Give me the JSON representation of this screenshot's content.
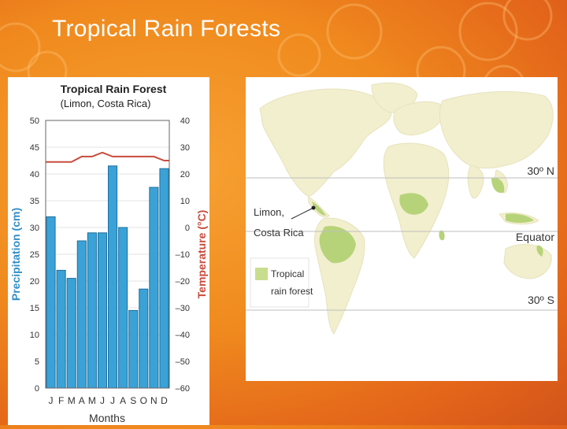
{
  "slide": {
    "title": "Tropical Rain Forests"
  },
  "chart_data": {
    "type": "bar+line",
    "title": "Tropical Rain Forest",
    "subtitle": "(Limon, Costa Rica)",
    "xlabel": "Months",
    "ylabel": "Precipitation (cm)",
    "y2label": "Temperature (°C)",
    "categories": [
      "J",
      "F",
      "M",
      "A",
      "M",
      "J",
      "J",
      "A",
      "S",
      "O",
      "N",
      "D"
    ],
    "ylim": [
      0,
      50
    ],
    "y2lim": [
      -60,
      40
    ],
    "yticks": [
      "50",
      "45",
      "40",
      "35",
      "30",
      "25",
      "20",
      "15",
      "10",
      "5",
      "0"
    ],
    "y2ticks": [
      "40",
      "30",
      "20",
      "10",
      "0",
      "–10",
      "–20",
      "–30",
      "–40",
      "–50",
      "–60"
    ],
    "series": [
      {
        "name": "Precipitation (cm)",
        "type": "bar",
        "color": "#3aa2d6",
        "values": [
          32,
          22,
          20.5,
          27.5,
          29,
          29,
          41.5,
          30,
          14.5,
          18.5,
          37.5,
          41
        ]
      },
      {
        "name": "Temperature (°C)",
        "type": "line",
        "color": "#c94b3c",
        "values": [
          24.5,
          24.5,
          24.5,
          26.5,
          26.5,
          28,
          26.5,
          26.5,
          26.5,
          26.5,
          26.5,
          25
        ]
      }
    ]
  },
  "map": {
    "location_label_line1": "Limon,",
    "location_label_line2": "Costa Rica",
    "legend_label_line1": "Tropical",
    "legend_label_line2": "rain forest",
    "lat_30n": "30º N",
    "equator": "Equator",
    "lat_30s": "30º S",
    "land_color": "#f2efce",
    "rainforest_color": "#b7d37a",
    "legend_color": "#c9dd8e"
  }
}
